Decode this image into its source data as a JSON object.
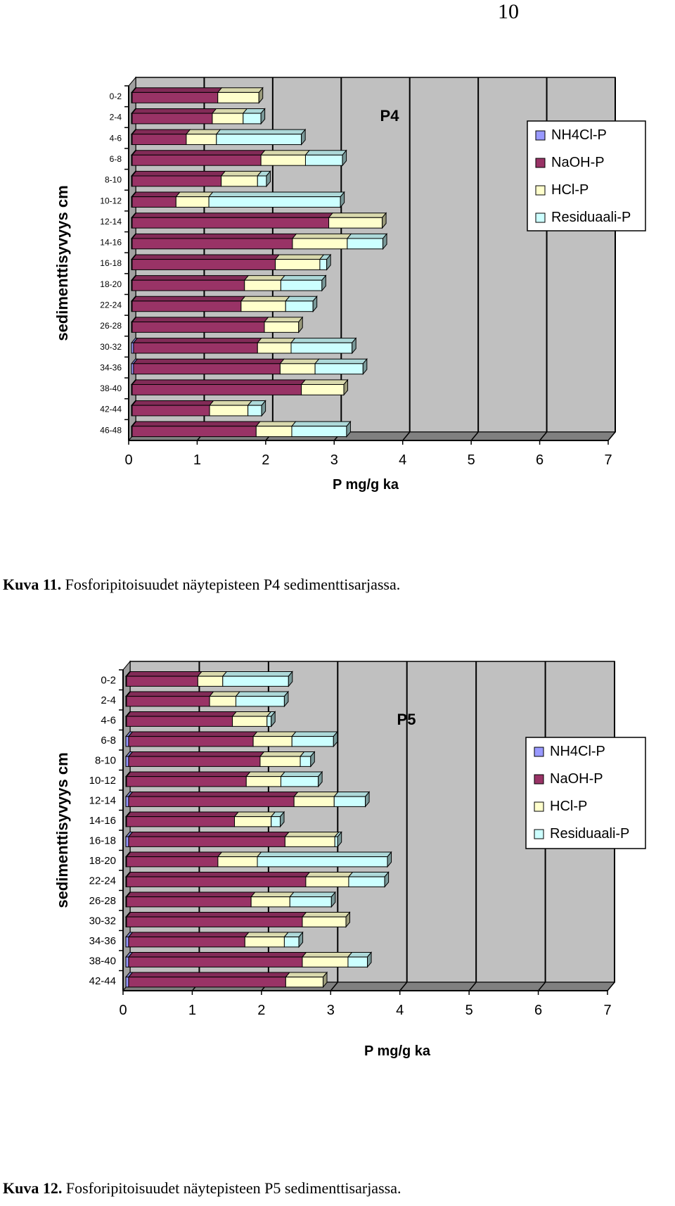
{
  "page_number": "10",
  "captions": [
    {
      "label": "Kuva 11.",
      "text": " Fosforipitoisuudet näytepisteen P4 sedimenttisarjassa."
    },
    {
      "label": "Kuva 12.",
      "text": " Fosforipitoisuudet näytepisteen P5 sedimenttisarjassa."
    }
  ],
  "colors": {
    "NH4Cl-P": "#9999ff",
    "NaOH-P": "#993366",
    "HCl-P": "#ffffcc",
    "Residuaali-P": "#ccffff",
    "plot_bg": "#c0c0c0"
  },
  "chart_data": [
    {
      "type": "bar",
      "orientation": "horizontal",
      "stacked": true,
      "annotation": "P4",
      "xlabel": "P mg/g ka",
      "ylabel": "sedimenttisyvyys cm",
      "xlim": [
        0,
        7
      ],
      "xticks": [
        "0",
        "1",
        "2",
        "3",
        "4",
        "5",
        "6",
        "7"
      ],
      "legend": "right",
      "categories": [
        "0-2",
        "2-4",
        "4-6",
        "6-8",
        "8-10",
        "10-12",
        "12-14",
        "14-16",
        "16-18",
        "18-20",
        "22-24",
        "26-28",
        "30-32",
        "34-36",
        "38-40",
        "42-44",
        "46-48"
      ],
      "series": [
        {
          "name": "NH4Cl-P",
          "values": [
            0.01,
            0.01,
            0.01,
            0.01,
            0.01,
            0.01,
            0.01,
            0.01,
            0.01,
            0.01,
            0.01,
            0.01,
            0.03,
            0.03,
            0.01,
            0.01,
            0.01
          ]
        },
        {
          "name": "NaOH-P",
          "values": [
            1.25,
            1.17,
            0.79,
            1.88,
            1.3,
            0.64,
            2.87,
            2.34,
            2.09,
            1.64,
            1.59,
            1.93,
            1.81,
            2.14,
            2.47,
            1.13,
            1.81
          ]
        },
        {
          "name": "HCl-P",
          "values": [
            0.6,
            0.45,
            0.44,
            0.65,
            0.53,
            0.48,
            0.78,
            0.8,
            0.65,
            0.53,
            0.65,
            0.5,
            0.49,
            0.51,
            0.62,
            0.56,
            0.52
          ]
        },
        {
          "name": "Residuaali-P",
          "values": [
            0,
            0.26,
            1.24,
            0.54,
            0.13,
            1.92,
            0,
            0.52,
            0.1,
            0.6,
            0.4,
            0,
            0.89,
            0.7,
            0,
            0.2,
            0.8
          ]
        }
      ]
    },
    {
      "type": "bar",
      "orientation": "horizontal",
      "stacked": true,
      "annotation": "P5",
      "xlabel": "P mg/g ka",
      "ylabel": "sedimenttisyvyys cm",
      "xlim": [
        0,
        7
      ],
      "xticks": [
        "0",
        "1",
        "2",
        "3",
        "4",
        "5",
        "6",
        "7"
      ],
      "legend": "right",
      "categories": [
        "0-2",
        "2-4",
        "4-6",
        "6-8",
        "8-10",
        "10-12",
        "12-14",
        "14-16",
        "16-18",
        "18-20",
        "22-24",
        "26-28",
        "30-32",
        "34-36",
        "38-40",
        "42-44"
      ],
      "series": [
        {
          "name": "NH4Cl-P",
          "values": [
            0.01,
            0.01,
            0.01,
            0.04,
            0.04,
            0.01,
            0.04,
            0.01,
            0.04,
            0.01,
            0.01,
            0.01,
            0.01,
            0.04,
            0.04,
            0.04
          ]
        },
        {
          "name": "NaOH-P",
          "values": [
            1.03,
            1.2,
            1.53,
            1.8,
            1.9,
            1.73,
            2.39,
            1.56,
            2.26,
            1.32,
            2.59,
            1.8,
            2.54,
            1.68,
            2.51,
            2.27
          ]
        },
        {
          "name": "HCl-P",
          "values": [
            0.36,
            0.38,
            0.5,
            0.56,
            0.58,
            0.5,
            0.58,
            0.53,
            0.72,
            0.57,
            0.62,
            0.56,
            0.63,
            0.57,
            0.66,
            0.54
          ]
        },
        {
          "name": "Residuaali-P",
          "values": [
            0.95,
            0.7,
            0.06,
            0.6,
            0.15,
            0.54,
            0.45,
            0.13,
            0.04,
            1.88,
            0.52,
            0.6,
            0,
            0.21,
            0.28,
            0
          ]
        }
      ]
    }
  ]
}
